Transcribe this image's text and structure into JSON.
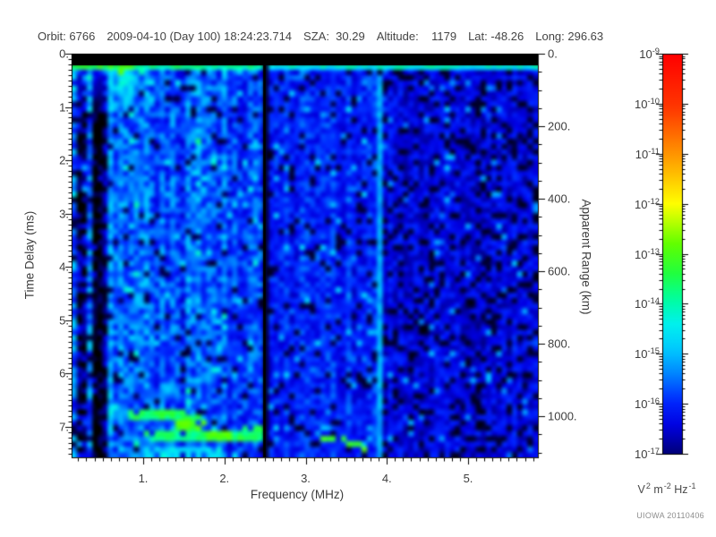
{
  "header": {
    "items": [
      "Orbit: 6766",
      "2009-04-10 (Day 100) 18:24:23.714",
      "SZA:  30.29",
      "Altitude:    1179",
      "Lat: -48.26",
      "Long: 296.63"
    ]
  },
  "credit": "UIOWA 20110406",
  "chart_data": {
    "type": "heatmap",
    "title": "",
    "xlabel": "Frequency (MHz)",
    "ylabel_left": "Time Delay (ms)",
    "ylabel_right": "Apparent Range (km)",
    "x_range_mhz": [
      0.12,
      5.86
    ],
    "y_range_ms": [
      0,
      7.57
    ],
    "range_axis_km": [
      0,
      1100
    ],
    "x_ticks_mhz": [
      1,
      2,
      3,
      4,
      5
    ],
    "y_ticks_ms": [
      0,
      1,
      2,
      3,
      4,
      5,
      6,
      7
    ],
    "range_ticks_km": [
      0,
      200,
      400,
      600,
      800,
      1000
    ],
    "grid": false,
    "legend_position": "right-colorbar",
    "colorbar": {
      "exponents": [
        -9,
        -10,
        -11,
        -12,
        -13,
        -14,
        -15,
        -16,
        -17
      ],
      "scale": "log",
      "unit_parts": [
        [
          "V",
          "2"
        ],
        [
          "m",
          "-2"
        ],
        [
          "Hz",
          "-1"
        ]
      ]
    },
    "colormap_stops": [
      [
        0.0,
        "#000005"
      ],
      [
        0.05,
        "#000070"
      ],
      [
        0.12,
        "#0000e0"
      ],
      [
        0.18,
        "#0028ff"
      ],
      [
        0.24,
        "#0080ff"
      ],
      [
        0.3,
        "#00c8ff"
      ],
      [
        0.36,
        "#00f0f0"
      ],
      [
        0.42,
        "#00ffa0"
      ],
      [
        0.48,
        "#20ff40"
      ],
      [
        0.55,
        "#60ff00"
      ],
      [
        0.645,
        "#ffff00"
      ],
      [
        0.75,
        "#ffa000"
      ],
      [
        0.87,
        "#ff3800"
      ],
      [
        1.0,
        "#ff0000"
      ]
    ],
    "regions": [
      {
        "f0": 0.12,
        "f1": 0.36,
        "mean": 0.22,
        "spread": 0.18,
        "black": 0.12,
        "streak": "strong"
      },
      {
        "f0": 0.36,
        "f1": 0.55,
        "mean": 0.05,
        "spread": 0.08,
        "black": 0.45,
        "streak": "strong"
      },
      {
        "f0": 0.55,
        "f1": 2.49,
        "mean": 0.195,
        "spread": 0.13,
        "black": 0.07,
        "streak": "med"
      },
      {
        "f0": 2.49,
        "f1": 3.97,
        "mean": 0.16,
        "spread": 0.1,
        "black": 0.09,
        "streak": "low"
      },
      {
        "f0": 3.97,
        "f1": 5.9,
        "mean": 0.125,
        "spread": 0.1,
        "black": 0.2,
        "streak": "low"
      }
    ],
    "features": {
      "top_black_band_ms": [
        0,
        0.185
      ],
      "agc_bright_stripe_ms": [
        0.185,
        0.335
      ],
      "dark_vline_mhz": 2.49,
      "bright_vline_mhz": 3.92,
      "dark_band_mhz": [
        0.36,
        0.55
      ],
      "bright_topleft_patch": {
        "f_max": 0.9,
        "d_max": 1.15
      }
    },
    "echo_trace": [
      {
        "f0": 0.84,
        "f1": 1.72,
        "d": 6.77,
        "v": 0.46
      },
      {
        "f0": 1.39,
        "f1": 1.78,
        "d": 6.97,
        "v": 0.52
      },
      {
        "f0": 2.22,
        "f1": 2.47,
        "d": 7.03,
        "v": 0.47
      },
      {
        "f0": 1.0,
        "f1": 2.46,
        "d": 7.18,
        "v": 0.44
      },
      {
        "f0": 1.76,
        "f1": 2.24,
        "d": 7.19,
        "v": 0.52
      },
      {
        "f0": 3.16,
        "f1": 3.52,
        "d": 7.2,
        "v": 0.5
      },
      {
        "f0": 3.53,
        "f1": 3.66,
        "d": 7.32,
        "v": 0.51
      },
      {
        "f0": 3.64,
        "f1": 3.76,
        "d": 7.42,
        "v": 0.52
      },
      {
        "f0": 1.0,
        "f1": 2.0,
        "d": 7.45,
        "v": 0.34
      }
    ]
  }
}
